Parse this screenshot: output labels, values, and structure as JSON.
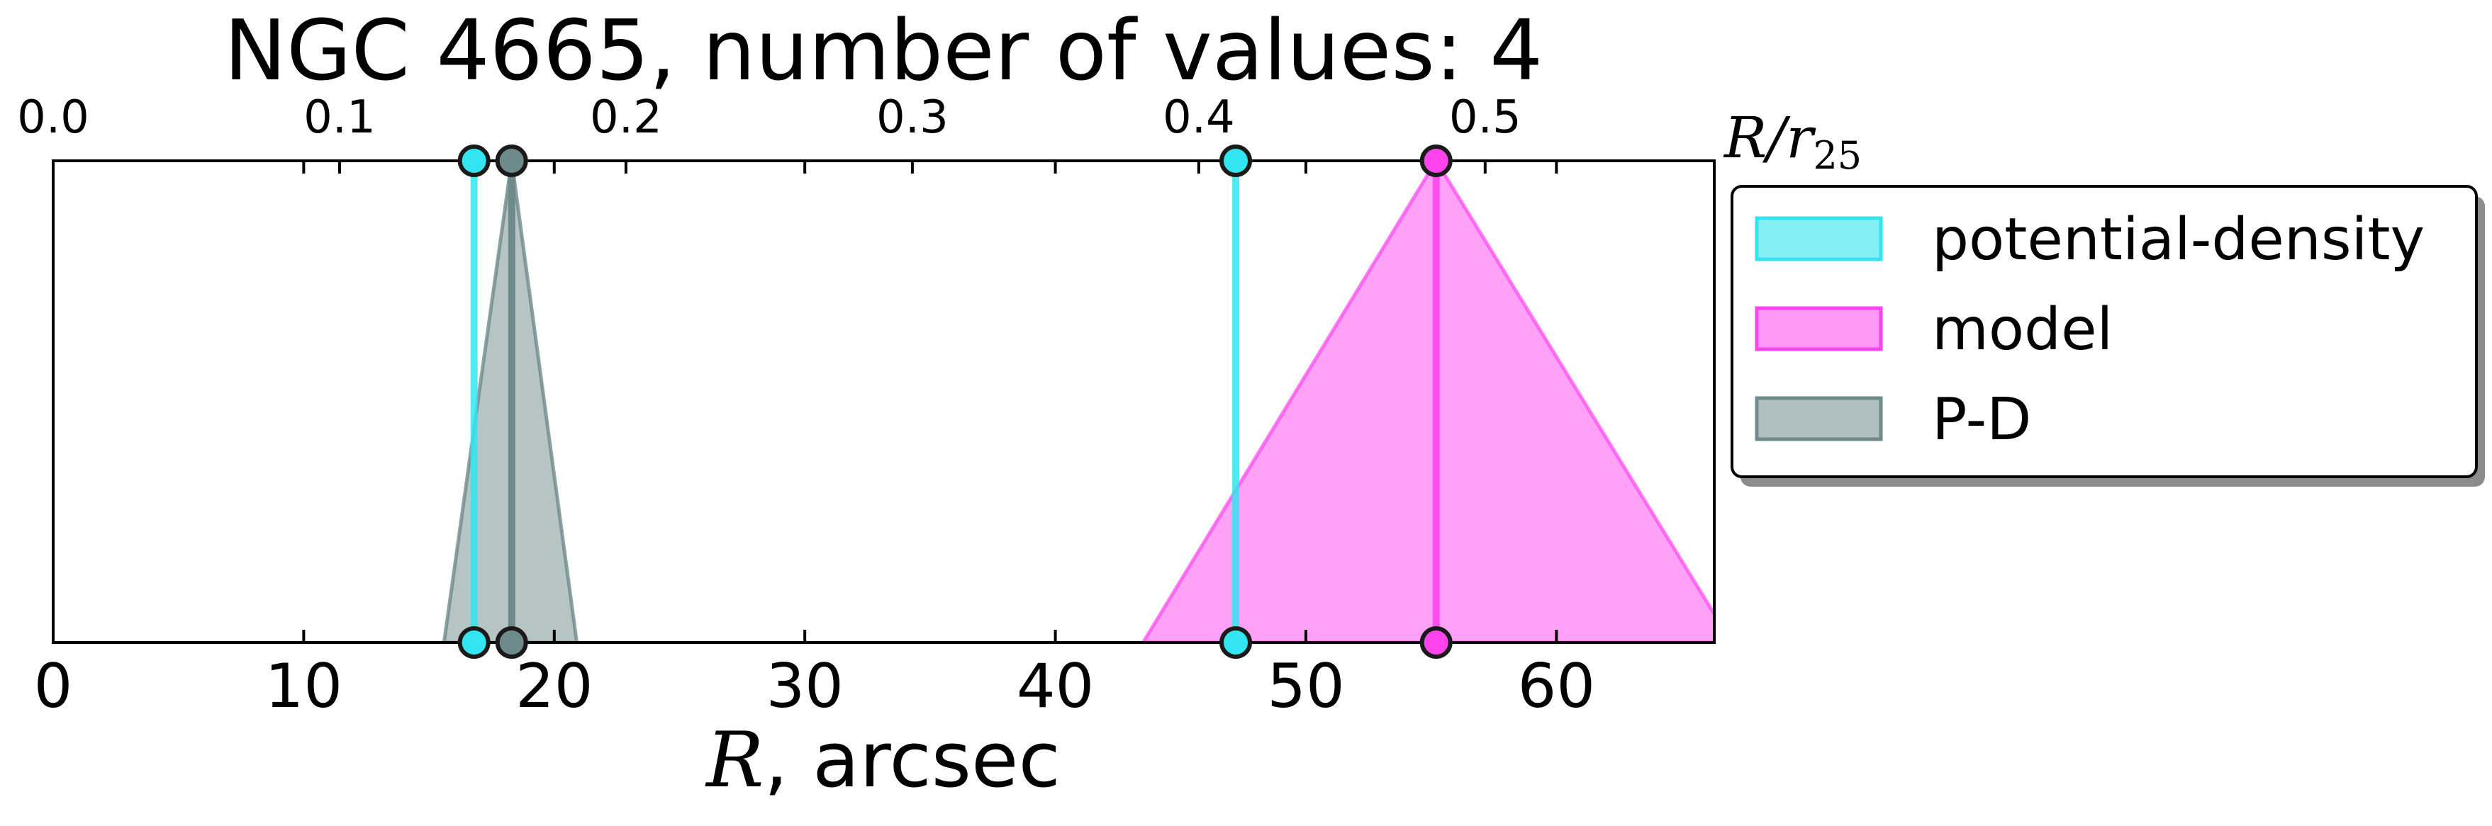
{
  "chart_data": {
    "type": "area",
    "title": "NGC 4665, number of values: 4",
    "xlabel_italic": "R",
    "xlabel_rest": ", arcsec",
    "top_xlabel_main": "R/r",
    "top_xlabel_sub": "25",
    "xlim": [
      0,
      66.3
    ],
    "top_xlim": [
      0,
      0.58
    ],
    "x_ticks": [
      0,
      10,
      20,
      30,
      40,
      50,
      60
    ],
    "x_tick_labels": [
      "0",
      "10",
      "20",
      "30",
      "40",
      "50",
      "60"
    ],
    "top_ticks": [
      0.0,
      0.1,
      0.2,
      0.3,
      0.4,
      0.5
    ],
    "top_tick_labels": [
      "0.0",
      "0.1",
      "0.2",
      "0.3",
      "0.4",
      "0.5"
    ],
    "ylim": [
      0,
      1
    ],
    "grid": false,
    "legend_position": "outside-right-top",
    "colors": {
      "potential_density": "#33e5f0",
      "model": "#ff44ee",
      "pd": "#6f8a8a"
    },
    "series": [
      {
        "name": "potential-density",
        "kind": "vlines",
        "x": [
          16.8,
          47.2
        ]
      },
      {
        "name": "model",
        "kind": "triangle",
        "center": 55.2,
        "base": [
          43.5,
          67.0
        ]
      },
      {
        "name": "P-D",
        "kind": "triangle",
        "center": 18.3,
        "base": [
          15.6,
          20.9
        ]
      }
    ],
    "legend": [
      "potential-density",
      "model",
      "P-D"
    ]
  }
}
